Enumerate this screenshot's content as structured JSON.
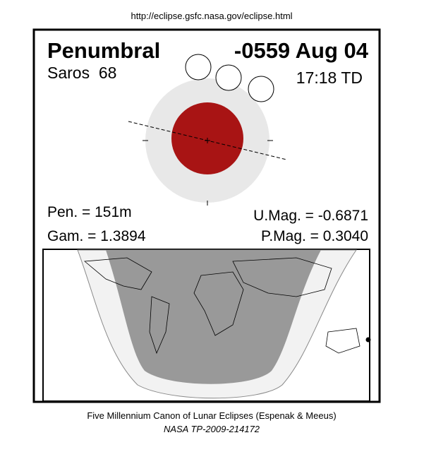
{
  "url": "http://eclipse.gsfc.nasa.gov/eclipse.html",
  "header": {
    "type": "Penumbral",
    "date": "-0559 Aug 04",
    "saros": "Saros  68",
    "time": "17:18 TD"
  },
  "stats": {
    "pen": "Pen. = 151m",
    "gam": "Gam. = 1.3894",
    "umag": "U.Mag. = -0.6871",
    "pmag": "P.Mag. = 0.3040"
  },
  "footer": {
    "canon": "Five Millennium Canon of Lunar Eclipses (Espenak & Meeus)",
    "ref": "NASA TP-2009-214172"
  }
}
